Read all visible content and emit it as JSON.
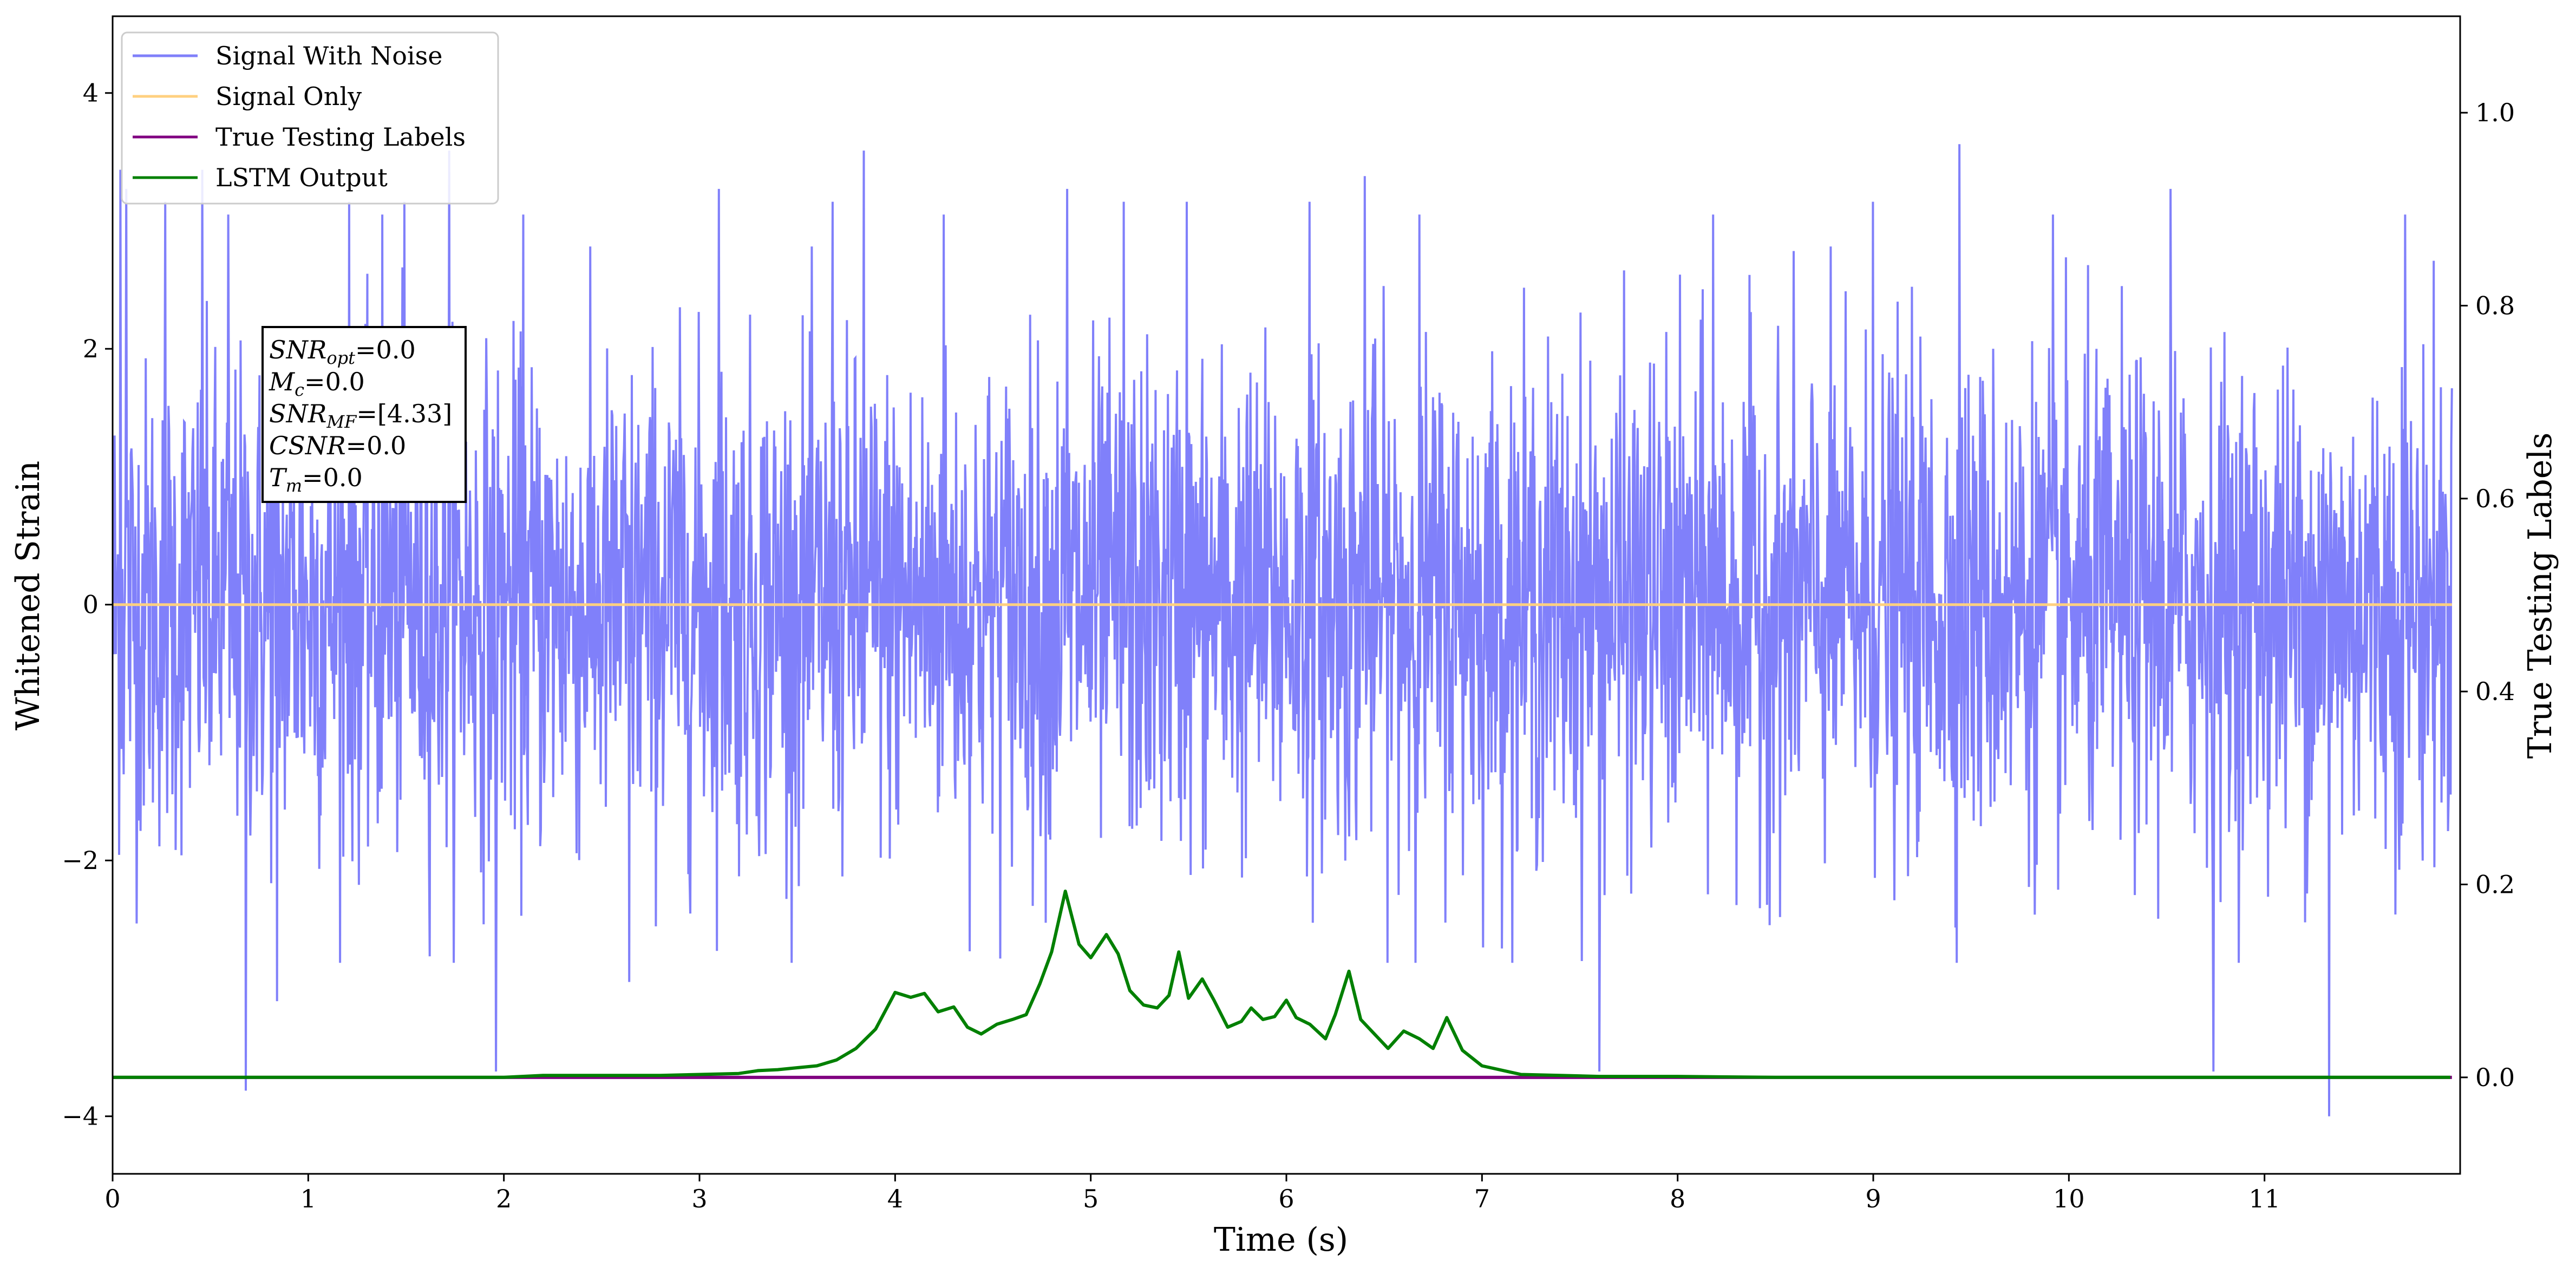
{
  "chart_data": {
    "type": "line",
    "xlabel": "Time (s)",
    "ylabel": "Whitened Strain",
    "ylabel_right": "True Testing Labels",
    "xlim": [
      0,
      12
    ],
    "ylim": [
      -4.45,
      4.6
    ],
    "ylim_right": [
      -0.1,
      1.1
    ],
    "x_ticks": [
      0,
      1,
      2,
      3,
      4,
      5,
      6,
      7,
      8,
      9,
      10,
      11
    ],
    "y_ticks": [
      -4,
      -2,
      0,
      2,
      4
    ],
    "y_ticks_right": [
      0.0,
      0.2,
      0.4,
      0.6,
      0.8,
      1.0
    ],
    "legend_position": "top-left",
    "colors": {
      "noise": "#8080fa",
      "signal": "#ffd080",
      "labels": "#800080",
      "lstm": "#008000"
    },
    "series": [
      {
        "name": "Signal With Noise",
        "axis": "left",
        "description_note": "dense noise, approx |y|<=2.5 with spikes",
        "spikes": [
          [
            0.04,
            3.4
          ],
          [
            0.07,
            3.25
          ],
          [
            0.27,
            3.15
          ],
          [
            0.46,
            3.4
          ],
          [
            0.59,
            3.05
          ],
          [
            0.68,
            -3.8
          ],
          [
            0.84,
            -3.1
          ],
          [
            1.21,
            3.15
          ],
          [
            1.38,
            3.05
          ],
          [
            1.49,
            3.15
          ],
          [
            1.72,
            3.55
          ],
          [
            1.96,
            -3.65
          ],
          [
            2.1,
            3.05
          ],
          [
            2.64,
            -2.95
          ],
          [
            3.1,
            3.25
          ],
          [
            3.68,
            3.15
          ],
          [
            3.84,
            3.55
          ],
          [
            4.25,
            3.05
          ],
          [
            4.88,
            3.25
          ],
          [
            5.17,
            3.15
          ],
          [
            5.49,
            3.15
          ],
          [
            6.12,
            3.15
          ],
          [
            6.4,
            3.35
          ],
          [
            6.68,
            3.05
          ],
          [
            7.6,
            -3.65
          ],
          [
            8.18,
            3.05
          ],
          [
            9.0,
            3.15
          ],
          [
            9.44,
            3.6
          ],
          [
            9.92,
            3.05
          ],
          [
            10.52,
            3.25
          ],
          [
            10.74,
            -3.65
          ],
          [
            11.33,
            -4.0
          ],
          [
            11.72,
            3.05
          ]
        ]
      },
      {
        "name": "Signal Only",
        "axis": "left",
        "x": [
          0,
          12
        ],
        "y": [
          0,
          0
        ]
      },
      {
        "name": "True Testing Labels",
        "axis": "right",
        "x": [
          0,
          12
        ],
        "y": [
          0,
          0
        ]
      },
      {
        "name": "LSTM Output",
        "axis": "right",
        "x": [
          0,
          0.5,
          1.0,
          1.5,
          2.0,
          2.2,
          2.5,
          2.8,
          3.0,
          3.2,
          3.3,
          3.4,
          3.5,
          3.6,
          3.7,
          3.8,
          3.9,
          4.0,
          4.08,
          4.15,
          4.22,
          4.3,
          4.37,
          4.44,
          4.52,
          4.6,
          4.67,
          4.74,
          4.8,
          4.87,
          4.94,
          5.0,
          5.08,
          5.14,
          5.2,
          5.27,
          5.34,
          5.4,
          5.45,
          5.5,
          5.57,
          5.63,
          5.7,
          5.77,
          5.82,
          5.88,
          5.94,
          6.0,
          6.05,
          6.12,
          6.2,
          6.25,
          6.32,
          6.38,
          6.45,
          6.52,
          6.6,
          6.68,
          6.75,
          6.82,
          6.9,
          7.0,
          7.2,
          7.4,
          7.6,
          8.0,
          8.5,
          9.0,
          10.0,
          11.0,
          11.95
        ],
        "y": [
          0.0,
          0.0,
          0.0,
          0.0,
          0.0,
          0.002,
          0.002,
          0.002,
          0.003,
          0.004,
          0.007,
          0.008,
          0.01,
          0.012,
          0.018,
          0.03,
          0.05,
          0.088,
          0.083,
          0.087,
          0.068,
          0.073,
          0.052,
          0.045,
          0.055,
          0.06,
          0.065,
          0.097,
          0.13,
          0.193,
          0.138,
          0.124,
          0.148,
          0.128,
          0.09,
          0.075,
          0.072,
          0.085,
          0.13,
          0.082,
          0.102,
          0.08,
          0.052,
          0.058,
          0.072,
          0.06,
          0.063,
          0.08,
          0.062,
          0.055,
          0.04,
          0.065,
          0.11,
          0.06,
          0.045,
          0.03,
          0.048,
          0.04,
          0.03,
          0.062,
          0.028,
          0.012,
          0.003,
          0.002,
          0.001,
          0.001,
          0.0,
          0.0,
          0.0,
          0.0,
          0.0
        ]
      }
    ]
  },
  "annotation": {
    "snr_opt_base": "SNR",
    "snr_opt_sub": "opt",
    "snr_opt_value": "=0.0",
    "mc_base": "M",
    "mc_sub": "c",
    "mc_value": "=0.0",
    "snr_mf_base": "SNR",
    "snr_mf_sub": "MF",
    "snr_mf_value": "=[4.33]",
    "csnr_base": "CSNR",
    "csnr_value": "=0.0",
    "tm_base": "T",
    "tm_sub": "m",
    "tm_value": "=0.0"
  }
}
